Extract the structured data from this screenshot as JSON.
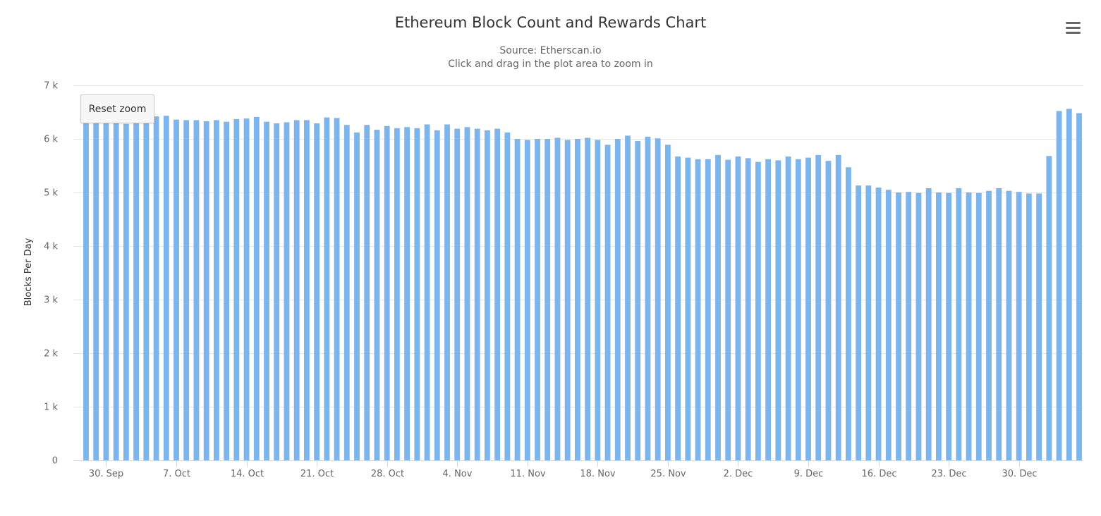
{
  "chart_title": "Ethereum Block Count and Rewards Chart",
  "subtitle_source": "Source: Etherscan.io",
  "subtitle_hint": "Click and drag in the plot area to zoom in",
  "reset_zoom_label": "Reset zoom",
  "menu_icon": "hamburger-menu-icon",
  "colors": {
    "bar": "#7cb5ec",
    "grid": "#e6e6e6",
    "axis": "#ccd6eb"
  },
  "chart_data": {
    "type": "bar",
    "title": "Ethereum Block Count and Rewards Chart",
    "subtitle": "Source: Etherscan.io",
    "ylabel": "Blocks Per Day",
    "xlabel": "",
    "ylim": [
      0,
      7000
    ],
    "yticks": [
      0,
      1000,
      2000,
      3000,
      4000,
      5000,
      6000,
      7000
    ],
    "ytick_labels": [
      "0",
      "1 k",
      "2 k",
      "3 k",
      "4 k",
      "5 k",
      "6 k",
      "7 k"
    ],
    "xtick_labels": [
      "30. Sep",
      "7. Oct",
      "14. Oct",
      "21. Oct",
      "28. Oct",
      "4. Nov",
      "11. Nov",
      "18. Nov",
      "25. Nov",
      "2. Dec",
      "9. Dec",
      "16. Dec",
      "23. Dec",
      "30. Dec"
    ],
    "xtick_index": [
      2,
      9,
      16,
      23,
      30,
      37,
      44,
      51,
      58,
      65,
      72,
      79,
      86,
      93
    ],
    "grid": true,
    "legend": false,
    "values": [
      6300,
      6310,
      6290,
      6300,
      6280,
      6310,
      6300,
      6420,
      6430,
      6360,
      6350,
      6350,
      6330,
      6350,
      6320,
      6370,
      6380,
      6410,
      6320,
      6290,
      6310,
      6350,
      6350,
      6290,
      6400,
      6390,
      6260,
      6120,
      6260,
      6170,
      6240,
      6200,
      6220,
      6200,
      6270,
      6160,
      6270,
      6190,
      6220,
      6190,
      6160,
      6190,
      6120,
      6000,
      5980,
      6000,
      6000,
      6020,
      5980,
      6000,
      6020,
      5980,
      5890,
      6000,
      6060,
      5960,
      6040,
      6010,
      5890,
      5670,
      5650,
      5620,
      5620,
      5700,
      5610,
      5670,
      5640,
      5570,
      5620,
      5600,
      5670,
      5620,
      5650,
      5700,
      5590,
      5700,
      5470,
      5130,
      5130,
      5090,
      5050,
      5000,
      5010,
      4990,
      5080,
      5000,
      4990,
      5080,
      5000,
      4990,
      5030,
      5080,
      5030,
      5010,
      4980,
      4980,
      5680,
      6520,
      6560,
      6480
    ]
  }
}
